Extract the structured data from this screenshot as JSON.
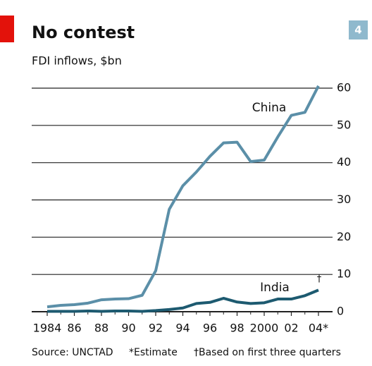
{
  "chart_data": {
    "type": "line",
    "title": "No contest",
    "subtitle": "FDI inflows, $bn",
    "badge": "4",
    "x": [
      1984,
      1985,
      1986,
      1987,
      1988,
      1989,
      1990,
      1991,
      1992,
      1993,
      1994,
      1995,
      1996,
      1997,
      1998,
      1999,
      2000,
      2001,
      2002,
      2003,
      2004
    ],
    "series": [
      {
        "name": "China",
        "color": "#5b8fa8",
        "values": [
          1.3,
          1.7,
          1.9,
          2.3,
          3.2,
          3.4,
          3.5,
          4.4,
          11,
          27.5,
          33.8,
          37.5,
          41.7,
          45.3,
          45.5,
          40.3,
          40.7,
          46.9,
          52.7,
          53.5,
          60.6
        ]
      },
      {
        "name": "India",
        "color": "#1d5a70",
        "values": [
          0.1,
          0.1,
          0.1,
          0.2,
          0.1,
          0.2,
          0.2,
          0.1,
          0.3,
          0.6,
          1.0,
          2.2,
          2.5,
          3.6,
          2.6,
          2.2,
          2.4,
          3.4,
          3.4,
          4.3,
          5.8
        ]
      }
    ],
    "xlim": [
      1984,
      2004
    ],
    "xticks": [
      1984,
      {
        "value": 1986,
        "label": "86"
      },
      {
        "value": 1988,
        "label": "88"
      },
      {
        "value": 1990,
        "label": "90"
      },
      {
        "value": 1992,
        "label": "92"
      },
      {
        "value": 1994,
        "label": "94"
      },
      {
        "value": 1996,
        "label": "96"
      },
      {
        "value": 1998,
        "label": "98"
      },
      2000,
      {
        "value": 2002,
        "label": "02"
      },
      {
        "value": 2004,
        "label": "04*"
      }
    ],
    "ylim": [
      0,
      60
    ],
    "yticks": [
      0,
      10,
      20,
      30,
      40,
      50,
      60
    ],
    "grid": true,
    "annotations": [
      "†"
    ],
    "footnotes": [
      "Source: UNCTAD",
      "*Estimate",
      "†Based on first three quarters"
    ]
  }
}
